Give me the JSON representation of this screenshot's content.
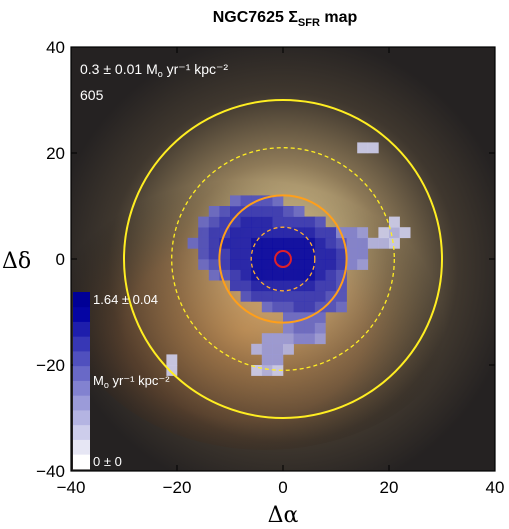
{
  "chart_data": {
    "type": "heatmap",
    "title": "NGC7625 Σ",
    "title_sub": "SFR",
    "title_suffix": " map",
    "xlabel": "Δα",
    "ylabel": "Δδ",
    "xlim": [
      -40,
      40
    ],
    "ylim": [
      -40,
      40
    ],
    "xticks": [
      -40,
      -20,
      0,
      20,
      40
    ],
    "yticks": [
      -40,
      -20,
      0,
      20,
      40
    ],
    "annotation_value": "0.3 ± 0.01 M",
    "annotation_units": " yr⁻¹ kpc⁻²",
    "annotation_index": "605",
    "colorbar": {
      "max_label": "1.64 ± 0.04",
      "min_label": "0 ± 0",
      "units_label": "M",
      "units_rest": " yr⁻¹ kpc⁻²",
      "colors": [
        "#ffffff",
        "#e6e6f4",
        "#cdcdeb",
        "#b4b4e2",
        "#9b9bd9",
        "#8282d0",
        "#6969c7",
        "#5050be",
        "#3737b5",
        "#1e1eac",
        "#0505a3",
        "#000096"
      ]
    },
    "circles": [
      {
        "r": 30,
        "style": "solid",
        "color": "#ffee22"
      },
      {
        "r": 21,
        "style": "dashed",
        "color": "#ffee22"
      },
      {
        "r": 12,
        "style": "solid",
        "color": "#ff9f1a"
      },
      {
        "r": 6,
        "style": "dashed",
        "color": "#ffb030"
      },
      {
        "r": 1.5,
        "style": "solid",
        "color": "#e0202a"
      }
    ],
    "sfr_clumps": [
      {
        "x": 0,
        "y": 0,
        "rx": 13,
        "ry": 9,
        "level": 0.95
      },
      {
        "x": -5,
        "y": 3,
        "rx": 12,
        "ry": 9,
        "level": 0.85
      },
      {
        "x": 4,
        "y": -4,
        "rx": 9,
        "ry": 8,
        "level": 0.8
      },
      {
        "x": -10,
        "y": 6,
        "rx": 6,
        "ry": 4,
        "level": 0.55
      },
      {
        "x": 12,
        "y": 2,
        "rx": 5,
        "ry": 5,
        "level": 0.5
      },
      {
        "x": 4,
        "y": -12,
        "rx": 5,
        "ry": 4,
        "level": 0.55
      },
      {
        "x": -2,
        "y": -17,
        "rx": 3,
        "ry": 4,
        "level": 0.4
      },
      {
        "x": 18,
        "y": 3,
        "rx": 2,
        "ry": 2,
        "level": 0.3
      },
      {
        "x": 21,
        "y": 5,
        "rx": 2,
        "ry": 2,
        "level": 0.3
      },
      {
        "x": 16,
        "y": 21,
        "rx": 2,
        "ry": 1.5,
        "level": 0.15
      },
      {
        "x": -21,
        "y": -20,
        "rx": 1.5,
        "ry": 1.5,
        "level": 0.2
      },
      {
        "x": -3,
        "y": -21,
        "rx": 2,
        "ry": 1.5,
        "level": 0.3
      }
    ]
  }
}
